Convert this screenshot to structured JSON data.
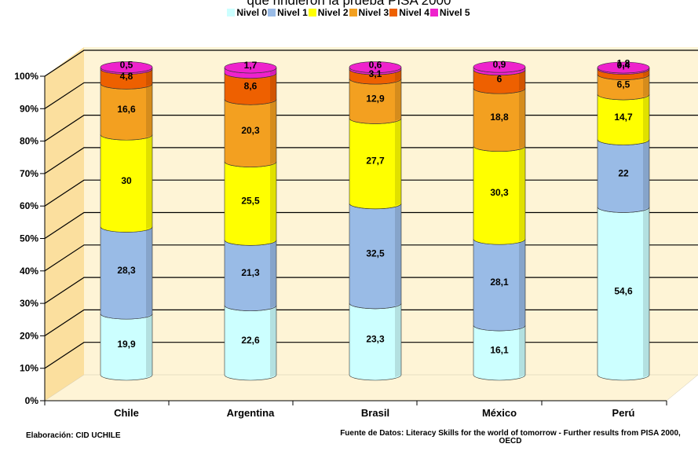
{
  "chart_data": {
    "type": "bar",
    "stacked": true,
    "percent": true,
    "title": "que rindieron la prueba PISA 2000",
    "categories": [
      "Chile",
      "Argentina",
      "Brasil",
      "México",
      "Perú"
    ],
    "series": [
      {
        "name": "Nivel 0",
        "color": "#ccffff",
        "values": [
          19.9,
          22.6,
          23.3,
          16.1,
          54.6
        ]
      },
      {
        "name": "Nivel 1",
        "color": "#99bbe6",
        "values": [
          28.3,
          21.3,
          32.5,
          28.1,
          22
        ]
      },
      {
        "name": "Nivel 2",
        "color": "#ffff00",
        "values": [
          30,
          25.5,
          27.7,
          30.3,
          14.7
        ]
      },
      {
        "name": "Nivel 3",
        "color": "#f3a020",
        "values": [
          16.6,
          20.3,
          12.9,
          18.8,
          6.5
        ]
      },
      {
        "name": "Nivel 4",
        "color": "#ee6000",
        "values": [
          4.8,
          8.6,
          3.1,
          6,
          1.8
        ]
      },
      {
        "name": "Nivel 5",
        "color": "#ee22cc",
        "values": [
          0.5,
          1.7,
          0.6,
          0.9,
          0.4
        ]
      }
    ],
    "data_labels": [
      [
        "19,9",
        "22,6",
        "23,3",
        "16,1",
        "54,6"
      ],
      [
        "28,3",
        "21,3",
        "32,5",
        "28,1",
        "22"
      ],
      [
        "30",
        "25,5",
        "27,7",
        "30,3",
        "14,7"
      ],
      [
        "16,6",
        "20,3",
        "12,9",
        "18,8",
        "6,5"
      ],
      [
        "4,8",
        "8,6",
        "3,1",
        "6",
        "1,8"
      ],
      [
        "0,5",
        "1,7",
        "0,6",
        "0,9",
        "0,4"
      ]
    ],
    "y_ticks": [
      "0%",
      "10%",
      "20%",
      "30%",
      "40%",
      "50%",
      "60%",
      "70%",
      "80%",
      "90%",
      "100%"
    ],
    "ylim": [
      0,
      100
    ],
    "grid": true,
    "legend_position": "top"
  },
  "footer": {
    "left": "Elaboración: CID UCHILE",
    "right": "Fuente de Datos: Literacy Skills for the world of tomorrow - Further results from PISA 2000, OECD"
  }
}
